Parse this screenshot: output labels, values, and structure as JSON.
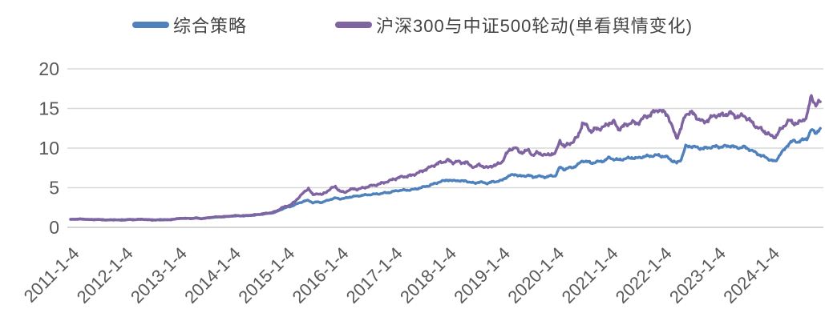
{
  "legend": [
    {
      "label": "综合策略",
      "color": "#4F81BD"
    },
    {
      "label": "沪深300与中证500轮动(单看舆情变化)",
      "color": "#8064A2"
    }
  ],
  "styles": {
    "background": "#FFFFFF",
    "grid_color": "#D9D9D9",
    "baseline_color": "#C6C6C6",
    "axis_text_color": "#595959"
  },
  "chart_data": {
    "type": "line",
    "title": "",
    "xlabel": "",
    "ylabel": "",
    "ylim": [
      0,
      20
    ],
    "y_ticks": [
      0,
      5,
      10,
      15,
      20
    ],
    "grid": "horizontal",
    "legend_position": "top-center",
    "x_tick_labels": [
      "2011-1-4",
      "2012-1-4",
      "2013-1-4",
      "2014-1-4",
      "2015-1-4",
      "2016-1-4",
      "2017-1-4",
      "2018-1-4",
      "2019-1-4",
      "2020-1-4",
      "2021-1-4",
      "2022-1-4",
      "2023-1-4",
      "2024-1-4"
    ],
    "x_resolution": "monthly from 2011-01 to 2024-12",
    "series": [
      {
        "name": "综合策略",
        "color": "#4F81BD",
        "values": [
          1.0,
          1.02,
          1.04,
          1.03,
          1.0,
          0.98,
          1.0,
          0.97,
          0.94,
          0.96,
          0.97,
          0.94,
          0.96,
          1.0,
          0.98,
          1.0,
          1.02,
          0.98,
          0.96,
          0.95,
          0.97,
          0.98,
          0.96,
          1.04,
          1.1,
          1.14,
          1.12,
          1.12,
          1.18,
          1.1,
          1.16,
          1.22,
          1.28,
          1.3,
          1.33,
          1.36,
          1.42,
          1.46,
          1.44,
          1.46,
          1.5,
          1.54,
          1.6,
          1.68,
          1.76,
          1.82,
          1.98,
          2.28,
          2.5,
          2.62,
          2.85,
          3.1,
          3.3,
          3.4,
          3.1,
          3.2,
          3.15,
          3.35,
          3.55,
          3.7,
          3.6,
          3.65,
          3.8,
          3.9,
          3.95,
          4.05,
          4.1,
          4.15,
          4.2,
          4.25,
          4.35,
          4.4,
          4.55,
          4.65,
          4.7,
          4.7,
          4.75,
          4.85,
          5.0,
          5.15,
          5.3,
          5.5,
          5.7,
          5.85,
          6.0,
          5.85,
          5.95,
          5.8,
          5.9,
          5.65,
          5.6,
          5.7,
          5.65,
          5.55,
          5.75,
          5.8,
          5.9,
          6.3,
          6.55,
          6.7,
          6.45,
          6.5,
          6.55,
          6.35,
          6.45,
          6.4,
          6.35,
          6.5,
          6.5,
          7.6,
          7.3,
          7.5,
          7.6,
          7.9,
          8.4,
          8.3,
          8.1,
          8.25,
          8.3,
          8.45,
          8.8,
          8.6,
          8.5,
          8.6,
          8.7,
          8.8,
          8.7,
          8.85,
          8.95,
          9.0,
          9.05,
          9.1,
          8.95,
          8.85,
          8.4,
          8.1,
          8.6,
          10.2,
          10.25,
          10.15,
          10.0,
          9.95,
          10.05,
          10.15,
          10.2,
          10.15,
          10.25,
          10.3,
          10.1,
          10.05,
          10.15,
          9.9,
          9.6,
          9.3,
          9.0,
          8.8,
          8.45,
          8.3,
          9.2,
          9.8,
          10.6,
          10.9,
          10.8,
          11.0,
          11.2,
          12.3,
          11.9,
          12.5
        ]
      },
      {
        "name": "沪深300与中证500轮动(单看舆情变化)",
        "color": "#8064A2",
        "values": [
          1.0,
          1.03,
          1.05,
          1.03,
          0.99,
          0.96,
          1.0,
          0.95,
          0.91,
          0.94,
          0.95,
          0.9,
          0.93,
          0.99,
          0.96,
          1.0,
          1.02,
          0.96,
          0.93,
          0.91,
          0.94,
          0.96,
          0.93,
          1.03,
          1.1,
          1.15,
          1.12,
          1.11,
          1.19,
          1.09,
          1.16,
          1.23,
          1.3,
          1.32,
          1.35,
          1.38,
          1.45,
          1.48,
          1.46,
          1.48,
          1.53,
          1.58,
          1.65,
          1.73,
          1.8,
          1.88,
          2.1,
          2.45,
          2.65,
          2.85,
          3.25,
          3.9,
          4.4,
          4.95,
          4.05,
          4.3,
          4.1,
          4.5,
          4.9,
          5.15,
          4.55,
          4.4,
          4.7,
          4.85,
          4.8,
          4.95,
          5.1,
          5.25,
          5.35,
          5.5,
          5.7,
          5.85,
          6.1,
          6.25,
          6.4,
          6.45,
          6.55,
          6.8,
          7.0,
          7.3,
          7.55,
          7.85,
          8.1,
          8.25,
          8.5,
          8.15,
          8.35,
          8.1,
          8.3,
          7.75,
          7.65,
          7.85,
          7.7,
          7.5,
          7.8,
          7.9,
          8.2,
          9.2,
          9.85,
          10.1,
          9.45,
          9.55,
          9.7,
          9.1,
          9.4,
          9.25,
          9.05,
          9.3,
          9.3,
          11.0,
          10.1,
          10.6,
          10.8,
          11.5,
          13.1,
          12.8,
          12.1,
          12.4,
          12.5,
          12.7,
          13.2,
          13.3,
          12.4,
          12.7,
          13.0,
          13.3,
          13.05,
          13.5,
          13.95,
          14.2,
          14.55,
          14.9,
          14.5,
          14.25,
          12.6,
          11.3,
          12.5,
          14.3,
          14.5,
          14.2,
          13.6,
          13.25,
          13.6,
          13.95,
          14.2,
          14.1,
          14.3,
          14.4,
          14.05,
          13.95,
          14.15,
          13.6,
          13.1,
          12.6,
          12.3,
          11.95,
          11.5,
          11.45,
          12.2,
          12.9,
          13.45,
          13.2,
          13.1,
          13.5,
          14.0,
          16.6,
          15.4,
          15.85
        ]
      }
    ]
  }
}
